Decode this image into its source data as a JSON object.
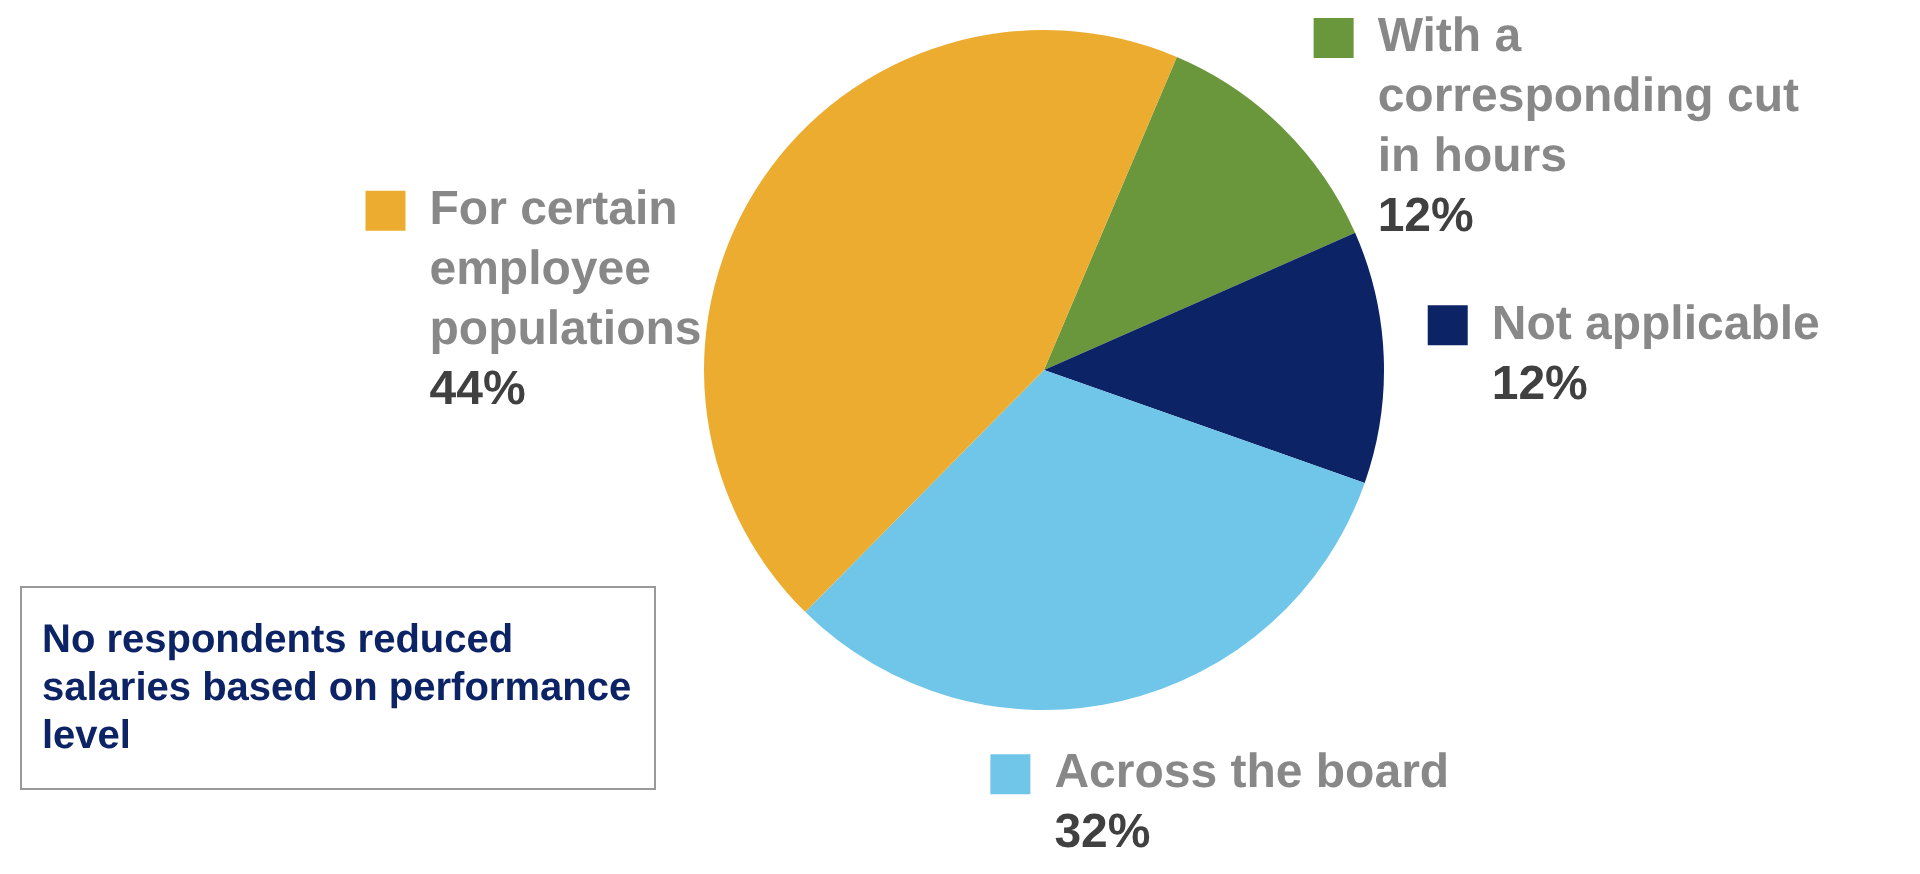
{
  "chart_data": {
    "type": "pie",
    "categories": [
      "With a corresponding cut in hours",
      "Not applicable",
      "Across the board",
      "For certain employee populations"
    ],
    "values": [
      12,
      12,
      32,
      44
    ],
    "colors": [
      "#6a963c",
      "#0c2365",
      "#6fc6e8",
      "#ebac2f"
    ],
    "value_labels": [
      "12%",
      "12%",
      "32%",
      "44%"
    ],
    "legend": "right",
    "annotations": [
      "No respondents reduced salaries based on performance level"
    ]
  }
}
